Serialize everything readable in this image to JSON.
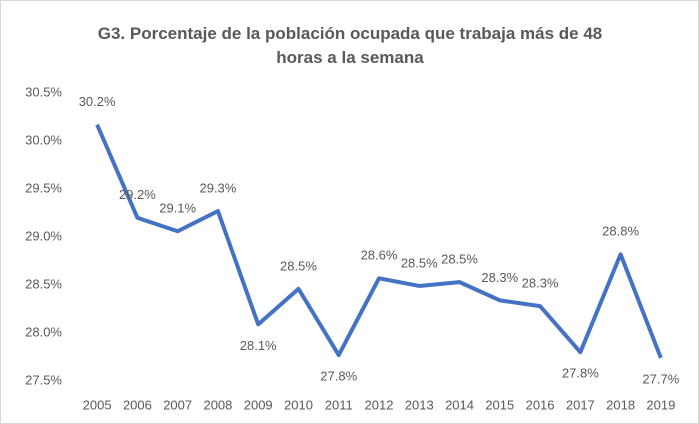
{
  "chart_data": {
    "type": "line",
    "title": "G3. Porcentaje de la población ocupada que trabaja más de 48 horas a la semana",
    "categories": [
      "2005",
      "2006",
      "2007",
      "2008",
      "2009",
      "2010",
      "2011",
      "2012",
      "2013",
      "2014",
      "2015",
      "2016",
      "2017",
      "2018",
      "2019"
    ],
    "series": [
      {
        "name": "Porcentaje",
        "color": "#4472c4",
        "values": [
          30.17,
          29.2,
          29.06,
          29.27,
          28.09,
          28.46,
          27.77,
          28.57,
          28.49,
          28.53,
          28.34,
          28.28,
          27.8,
          28.82,
          27.74
        ],
        "value_labels": [
          "30.2%",
          "29.2%",
          "29.1%",
          "29.3%",
          "28.1%",
          "28.5%",
          "27.8%",
          "28.6%",
          "28.5%",
          "28.5%",
          "28.3%",
          "28.3%",
          "27.8%",
          "28.8%",
          "27.7%"
        ]
      }
    ],
    "ylim": [
      27.5,
      30.5
    ],
    "yticks": [
      {
        "value": 27.5,
        "label": "27.5%"
      },
      {
        "value": 28.0,
        "label": "28.0%"
      },
      {
        "value": 28.5,
        "label": "28.5%"
      },
      {
        "value": 29.0,
        "label": "29.0%"
      },
      {
        "value": 29.5,
        "label": "29.5%"
      },
      {
        "value": 30.0,
        "label": "30.0%"
      },
      {
        "value": 30.5,
        "label": "30.5%"
      }
    ],
    "grid": false
  }
}
